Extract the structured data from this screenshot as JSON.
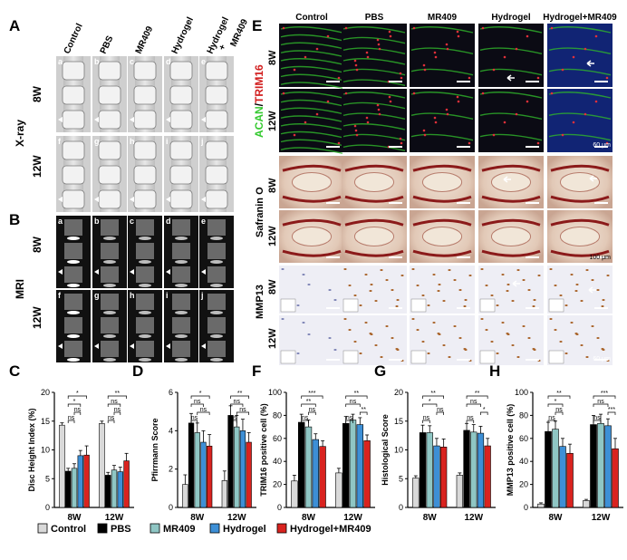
{
  "panel_letters": {
    "A": "A",
    "B": "B",
    "C": "C",
    "D": "D",
    "E": "E",
    "F": "F",
    "G": "G",
    "H": "H"
  },
  "groups": [
    "Control",
    "PBS",
    "MR409",
    "Hydrogel",
    "Hydrogel+MR409"
  ],
  "group_headers_A": [
    "Control",
    "PBS",
    "MR409",
    "Hydrogel",
    "Hydrogel\n+\nMR409"
  ],
  "timepoints": [
    "8W",
    "12W"
  ],
  "row_labels": {
    "xray": "X-ray",
    "mri": "MRI",
    "safranin": "Safranin O",
    "mmp13": "MMP13"
  },
  "stain_label": {
    "acan": "ACAN",
    "slash": "/",
    "trim16": "TRIM16"
  },
  "subpanel_letters_A": [
    "a",
    "b",
    "c",
    "d",
    "e",
    "f",
    "g",
    "h",
    "i",
    "j"
  ],
  "subpanel_letters_B": [
    "a",
    "b",
    "c",
    "d",
    "e",
    "f",
    "g",
    "h",
    "i",
    "j"
  ],
  "scale_labels": [
    "60 μm",
    "100 μm",
    "60 μm"
  ],
  "colors": {
    "Control": "#d9d9d9",
    "PBS": "#000000",
    "MR409": "#8fc6c4",
    "Hydrogel": "#3d8fd6",
    "Hydrogel+MR409": "#d9231f"
  },
  "chart_data": [
    {
      "panel": "C",
      "type": "bar",
      "categories": [
        "8W",
        "12W"
      ],
      "ylabel": "Disc Height Index (%)",
      "ylim": [
        0,
        20
      ],
      "yticks": [
        0,
        5,
        10,
        15,
        20
      ],
      "series": [
        {
          "name": "Control",
          "values": [
            14.3,
            14.6
          ],
          "err": [
            0.4,
            0.4
          ]
        },
        {
          "name": "PBS",
          "values": [
            6.3,
            5.6
          ],
          "err": [
            0.5,
            0.5
          ]
        },
        {
          "name": "MR409",
          "values": [
            6.8,
            6.5
          ],
          "err": [
            0.8,
            0.8
          ]
        },
        {
          "name": "Hydrogel",
          "values": [
            9.0,
            6.2
          ],
          "err": [
            0.9,
            0.8
          ]
        },
        {
          "name": "Hydrogel+MR409",
          "values": [
            9.1,
            8.1
          ],
          "err": [
            1.6,
            1.3
          ]
        }
      ],
      "brackets": [
        {
          "cat": 0,
          "from": 1,
          "to": 4,
          "level": 4,
          "label": "*"
        },
        {
          "cat": 0,
          "from": 1,
          "to": 3,
          "level": 3,
          "label": "*"
        },
        {
          "cat": 0,
          "from": 1,
          "to": 2,
          "level": 1,
          "label": "ns"
        },
        {
          "cat": 0,
          "from": 2,
          "to": 3,
          "level": 2,
          "label": "ns"
        },
        {
          "cat": 1,
          "from": 1,
          "to": 4,
          "level": 4,
          "label": "**"
        },
        {
          "cat": 1,
          "from": 1,
          "to": 3,
          "level": 3,
          "label": "ns"
        },
        {
          "cat": 1,
          "from": 1,
          "to": 2,
          "level": 1,
          "label": "ns"
        },
        {
          "cat": 1,
          "from": 2,
          "to": 3,
          "level": 2,
          "label": "ns"
        }
      ]
    },
    {
      "panel": "D",
      "type": "bar",
      "categories": [
        "8W",
        "12W"
      ],
      "ylabel": "Pfirrmann Score",
      "ylim": [
        0,
        6
      ],
      "yticks": [
        0,
        2,
        4,
        6
      ],
      "series": [
        {
          "name": "Control",
          "values": [
            1.2,
            1.4
          ],
          "err": [
            0.5,
            0.5
          ]
        },
        {
          "name": "PBS",
          "values": [
            4.4,
            4.8
          ],
          "err": [
            0.5,
            0.5
          ]
        },
        {
          "name": "MR409",
          "values": [
            3.9,
            4.2
          ],
          "err": [
            0.5,
            0.6
          ]
        },
        {
          "name": "Hydrogel",
          "values": [
            3.4,
            4.0
          ],
          "err": [
            0.6,
            0.6
          ]
        },
        {
          "name": "Hydrogel+MR409",
          "values": [
            3.2,
            3.4
          ],
          "err": [
            0.6,
            0.5
          ]
        }
      ],
      "brackets": [
        {
          "cat": 0,
          "from": 1,
          "to": 4,
          "level": 4,
          "label": "*"
        },
        {
          "cat": 0,
          "from": 1,
          "to": 2,
          "level": 1,
          "label": "ns"
        },
        {
          "cat": 0,
          "from": 1,
          "to": 3,
          "level": 3,
          "label": "ns"
        },
        {
          "cat": 0,
          "from": 2,
          "to": 4,
          "level": 2,
          "label": "ns"
        },
        {
          "cat": 1,
          "from": 1,
          "to": 4,
          "level": 4,
          "label": "**"
        },
        {
          "cat": 1,
          "from": 1,
          "to": 2,
          "level": 1,
          "label": "ns"
        },
        {
          "cat": 1,
          "from": 1,
          "to": 3,
          "level": 3,
          "label": "ns"
        },
        {
          "cat": 1,
          "from": 2,
          "to": 4,
          "level": 2,
          "label": "ns"
        }
      ]
    },
    {
      "panel": "F",
      "type": "bar",
      "categories": [
        "8W",
        "12W"
      ],
      "ylabel": "TRIM16 positive cell (%)",
      "ylim": [
        0,
        100
      ],
      "yticks": [
        0,
        20,
        40,
        60,
        80,
        100
      ],
      "series": [
        {
          "name": "Control",
          "values": [
            23,
            30
          ],
          "err": [
            5,
            4
          ]
        },
        {
          "name": "PBS",
          "values": [
            74,
            73
          ],
          "err": [
            7,
            6
          ]
        },
        {
          "name": "MR409",
          "values": [
            70,
            76
          ],
          "err": [
            6,
            5
          ]
        },
        {
          "name": "Hydrogel",
          "values": [
            59,
            72
          ],
          "err": [
            5,
            6
          ]
        },
        {
          "name": "Hydrogel+MR409",
          "values": [
            53,
            58
          ],
          "err": [
            5,
            5
          ]
        }
      ],
      "brackets": [
        {
          "cat": 0,
          "from": 1,
          "to": 4,
          "level": 4,
          "label": "***"
        },
        {
          "cat": 0,
          "from": 1,
          "to": 3,
          "level": 3,
          "label": "**"
        },
        {
          "cat": 0,
          "from": 1,
          "to": 2,
          "level": 1,
          "label": "ns"
        },
        {
          "cat": 0,
          "from": 2,
          "to": 3,
          "level": 2,
          "label": "ns"
        },
        {
          "cat": 1,
          "from": 1,
          "to": 4,
          "level": 4,
          "label": "**"
        },
        {
          "cat": 1,
          "from": 1,
          "to": 2,
          "level": 1,
          "label": "ns"
        },
        {
          "cat": 1,
          "from": 1,
          "to": 3,
          "level": 3,
          "label": "ns"
        },
        {
          "cat": 1,
          "from": 3,
          "to": 4,
          "level": 2,
          "label": "**"
        }
      ]
    },
    {
      "panel": "G",
      "type": "bar",
      "categories": [
        "8W",
        "12W"
      ],
      "ylabel": "Histological Score",
      "ylim": [
        0,
        20
      ],
      "yticks": [
        0,
        5,
        10,
        15,
        20
      ],
      "series": [
        {
          "name": "Control",
          "values": [
            5.1,
            5.6
          ],
          "err": [
            0.4,
            0.4
          ]
        },
        {
          "name": "PBS",
          "values": [
            13.0,
            13.4
          ],
          "err": [
            1.3,
            1.2
          ]
        },
        {
          "name": "MR409",
          "values": [
            13.0,
            13.1
          ],
          "err": [
            1.2,
            1.3
          ]
        },
        {
          "name": "Hydrogel",
          "values": [
            10.7,
            12.9
          ],
          "err": [
            1.3,
            1.2
          ]
        },
        {
          "name": "Hydrogel+MR409",
          "values": [
            10.5,
            10.7
          ],
          "err": [
            1.4,
            1.3
          ]
        }
      ],
      "brackets": [
        {
          "cat": 0,
          "from": 1,
          "to": 4,
          "level": 4,
          "label": "**"
        },
        {
          "cat": 0,
          "from": 1,
          "to": 3,
          "level": 3,
          "label": "*"
        },
        {
          "cat": 0,
          "from": 1,
          "to": 2,
          "level": 1,
          "label": "ns"
        },
        {
          "cat": 0,
          "from": 3,
          "to": 4,
          "level": 2,
          "label": "ns"
        },
        {
          "cat": 1,
          "from": 1,
          "to": 4,
          "level": 4,
          "label": "**"
        },
        {
          "cat": 1,
          "from": 1,
          "to": 2,
          "level": 1,
          "label": "ns"
        },
        {
          "cat": 1,
          "from": 1,
          "to": 3,
          "level": 3,
          "label": "ns"
        },
        {
          "cat": 1,
          "from": 3,
          "to": 4,
          "level": 2,
          "label": "*"
        }
      ]
    },
    {
      "panel": "H",
      "type": "bar",
      "categories": [
        "8W",
        "12W"
      ],
      "ylabel": "MMP13 positive cell (%)",
      "ylim": [
        0,
        100
      ],
      "yticks": [
        0,
        20,
        40,
        60,
        80,
        100
      ],
      "series": [
        {
          "name": "Control",
          "values": [
            3,
            6
          ],
          "err": [
            1,
            1
          ]
        },
        {
          "name": "PBS",
          "values": [
            66,
            72
          ],
          "err": [
            8,
            8
          ]
        },
        {
          "name": "MR409",
          "values": [
            68,
            73
          ],
          "err": [
            7,
            8
          ]
        },
        {
          "name": "Hydrogel",
          "values": [
            53,
            71
          ],
          "err": [
            7,
            6
          ]
        },
        {
          "name": "Hydrogel+MR409",
          "values": [
            47,
            51
          ],
          "err": [
            8,
            9
          ]
        }
      ],
      "brackets": [
        {
          "cat": 0,
          "from": 1,
          "to": 4,
          "level": 4,
          "label": "**"
        },
        {
          "cat": 0,
          "from": 1,
          "to": 3,
          "level": 3,
          "label": "*"
        },
        {
          "cat": 0,
          "from": 1,
          "to": 2,
          "level": 1,
          "label": "ns"
        },
        {
          "cat": 0,
          "from": 2,
          "to": 3,
          "level": 2,
          "label": "ns"
        },
        {
          "cat": 1,
          "from": 1,
          "to": 4,
          "level": 4,
          "label": "***"
        },
        {
          "cat": 1,
          "from": 1,
          "to": 2,
          "level": 1,
          "label": "ns"
        },
        {
          "cat": 1,
          "from": 1,
          "to": 3,
          "level": 3,
          "label": "ns"
        },
        {
          "cat": 1,
          "from": 3,
          "to": 4,
          "level": 2,
          "label": "***"
        }
      ]
    }
  ]
}
